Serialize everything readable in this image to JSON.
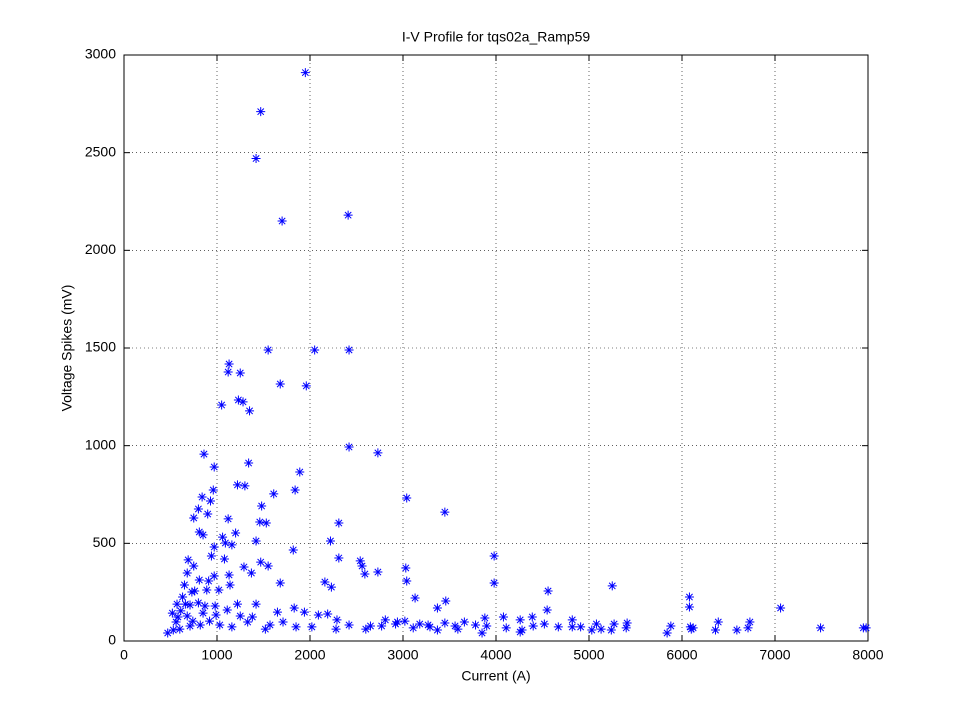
{
  "chart_data": {
    "type": "scatter",
    "title": "I-V Profile for tqs02a_Ramp59",
    "x_label": "Current (A)",
    "y_label": "Voltage Spikes (mV)",
    "color": "#0000ff",
    "grid": true,
    "marker": "asterisk",
    "xlim": [
      0,
      8000
    ],
    "ylim": [
      0,
      3000
    ],
    "xticks": [
      0,
      1000,
      2000,
      3000,
      4000,
      5000,
      6000,
      7000,
      8000
    ],
    "yticks": [
      0,
      500,
      1000,
      1500,
      2000,
      2500,
      3000
    ],
    "x": [
      1950,
      1470,
      1420,
      1700,
      2410,
      1550,
      2050,
      2420,
      1130,
      1120,
      1250,
      1680,
      1960,
      1050,
      1230,
      1280,
      1350,
      2420,
      2730,
      860,
      1340,
      970,
      1890,
      1220,
      1300,
      960,
      1840,
      840,
      1610,
      3040,
      930,
      1480,
      800,
      3450,
      900,
      750,
      1120,
      2310,
      1460,
      1530,
      810,
      850,
      1200,
      1060,
      1420,
      1090,
      2220,
      1160,
      970,
      3980,
      1820,
      940,
      690,
      2540,
      1080,
      1470,
      2310,
      2560,
      1550,
      750,
      3030,
      2730,
      1290,
      2590,
      680,
      1370,
      970,
      1130,
      2160,
      3980,
      5250,
      650,
      1680,
      2230,
      3040,
      6080,
      4560,
      3130,
      3460,
      7060,
      6080,
      4550,
      3370,
      4390,
      3880,
      4080,
      4260,
      4820,
      5080,
      5410,
      6390,
      6730,
      6710,
      6090,
      6360,
      6590,
      7490,
      7980,
      7950,
      5840,
      6120,
      5270,
      5240,
      5130,
      5030,
      4820,
      4670,
      4520,
      4280,
      4260,
      4110,
      3850,
      3780,
      3660,
      3560,
      3450,
      3290,
      3180,
      3020,
      2940,
      2810,
      2770,
      2600,
      2420,
      2290,
      2190,
      2090,
      1940,
      1830,
      1650,
      1520,
      1570,
      1330,
      1160,
      1030,
      920,
      820,
      710,
      600,
      530,
      470,
      560,
      610,
      710,
      800,
      870,
      980,
      1110,
      1220,
      1420,
      520,
      580,
      660,
      760,
      890,
      1020,
      1140,
      910,
      810,
      730,
      630,
      570,
      680,
      740,
      850,
      990,
      1250,
      1380,
      1710,
      1850,
      2020,
      2280,
      2650,
      2920,
      3110,
      3270,
      3370,
      3590,
      3900,
      4400,
      4910,
      5880,
      6100,
      5400
    ],
    "values": [
      2910,
      2710,
      2470,
      2150,
      2180,
      1490,
      1490,
      1490,
      1418,
      1377,
      1372,
      1316,
      1306,
      1208,
      1234,
      1224,
      1178,
      993,
      963,
      957,
      911,
      891,
      865,
      799,
      794,
      773,
      773,
      737,
      753,
      732,
      717,
      691,
      676,
      660,
      650,
      630,
      625,
      604,
      609,
      604,
      558,
      543,
      553,
      532,
      512,
      502,
      512,
      492,
      481,
      435,
      466,
      435,
      415,
      410,
      420,
      404,
      425,
      384,
      384,
      384,
      374,
      353,
      379,
      343,
      348,
      348,
      333,
      338,
      302,
      297,
      282,
      287,
      297,
      276,
      307,
      225,
      256,
      220,
      205,
      169,
      174,
      159,
      169,
      123,
      118,
      123,
      108,
      108,
      87,
      92,
      97,
      97,
      67,
      72,
      56,
      56,
      67,
      67,
      67,
      41,
      67,
      87,
      56,
      61,
      56,
      72,
      72,
      87,
      56,
      46,
      67,
      41,
      82,
      97,
      77,
      92,
      72,
      87,
      102,
      97,
      108,
      77,
      61,
      82,
      108,
      138,
      133,
      148,
      169,
      148,
      61,
      82,
      97,
      72,
      82,
      102,
      82,
      77,
      61,
      56,
      41,
      97,
      154,
      184,
      195,
      179,
      179,
      159,
      189,
      189,
      143,
      123,
      189,
      256,
      261,
      261,
      287,
      307,
      312,
      251,
      225,
      189,
      128,
      102,
      143,
      133,
      128,
      123,
      97,
      72,
      72,
      61,
      77,
      87,
      67,
      82,
      56,
      61,
      77,
      77,
      72,
      77,
      61,
      67
    ]
  }
}
